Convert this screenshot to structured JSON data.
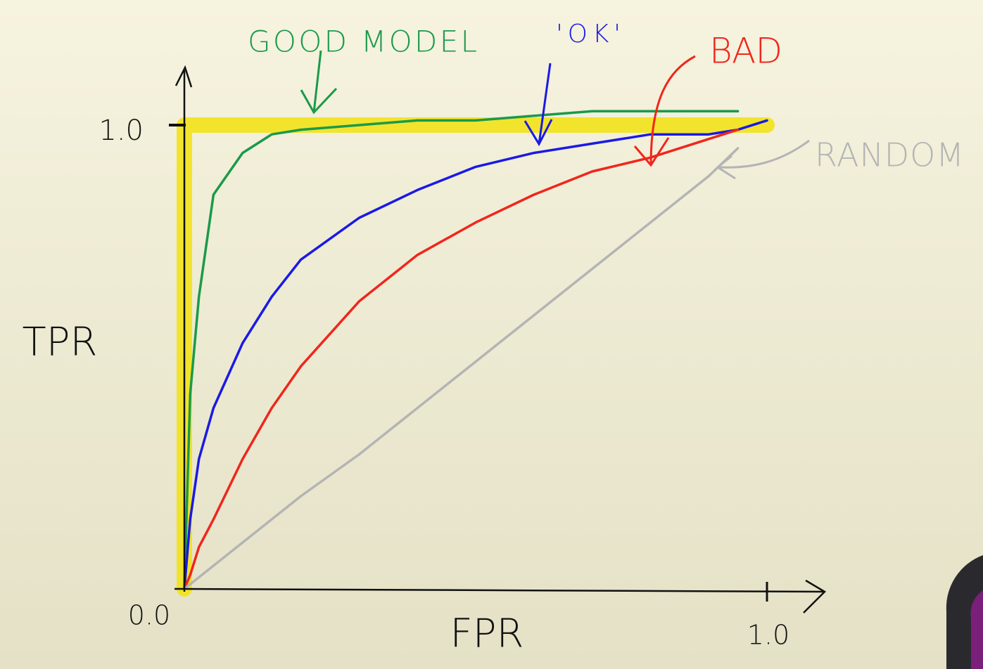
{
  "chart_data": {
    "type": "line",
    "x_label": "FPR",
    "y_label": "TPR",
    "xlim": [
      0,
      1
    ],
    "ylim": [
      0,
      1
    ],
    "xticks": [
      {
        "value": 0,
        "label": "0.0"
      },
      {
        "value": 1,
        "label": "1.0"
      }
    ],
    "yticks": [
      {
        "value": 1,
        "label": "1.0"
      }
    ],
    "x": [
      0,
      0.01,
      0.025,
      0.05,
      0.1,
      0.15,
      0.2,
      0.3,
      0.4,
      0.5,
      0.6,
      0.7,
      0.8,
      0.9,
      0.95,
      1.0
    ],
    "series": [
      {
        "name": "GOOD MODEL",
        "color": "#1a9a4a",
        "values": [
          0,
          0.42,
          0.63,
          0.85,
          0.94,
          0.98,
          0.99,
          1.0,
          1.01,
          1.01,
          1.02,
          1.03,
          1.03,
          1.03,
          1.03,
          null
        ]
      },
      {
        "name": "'OK'",
        "color": "#1a1ae6",
        "values": [
          0,
          0.15,
          0.28,
          0.39,
          0.53,
          0.63,
          0.71,
          0.8,
          0.86,
          0.91,
          0.94,
          0.96,
          0.98,
          0.98,
          0.99,
          1.01
        ]
      },
      {
        "name": "BAD",
        "color": "#f0261c",
        "values": [
          0,
          0.03,
          0.09,
          0.15,
          0.28,
          0.39,
          0.48,
          0.62,
          0.72,
          0.79,
          0.85,
          0.9,
          0.93,
          0.97,
          0.99,
          null
        ]
      },
      {
        "name": "RANDOM",
        "color": "#b4b4b4",
        "values": [
          0,
          0.01,
          0.025,
          0.05,
          0.1,
          0.15,
          0.2,
          0.29,
          0.39,
          0.49,
          0.59,
          0.69,
          0.79,
          0.89,
          0.95,
          null
        ]
      },
      {
        "color": "#f2e21a",
        "x": [
          0,
          0,
          1
        ],
        "values": [
          0,
          1,
          1
        ]
      }
    ]
  }
}
